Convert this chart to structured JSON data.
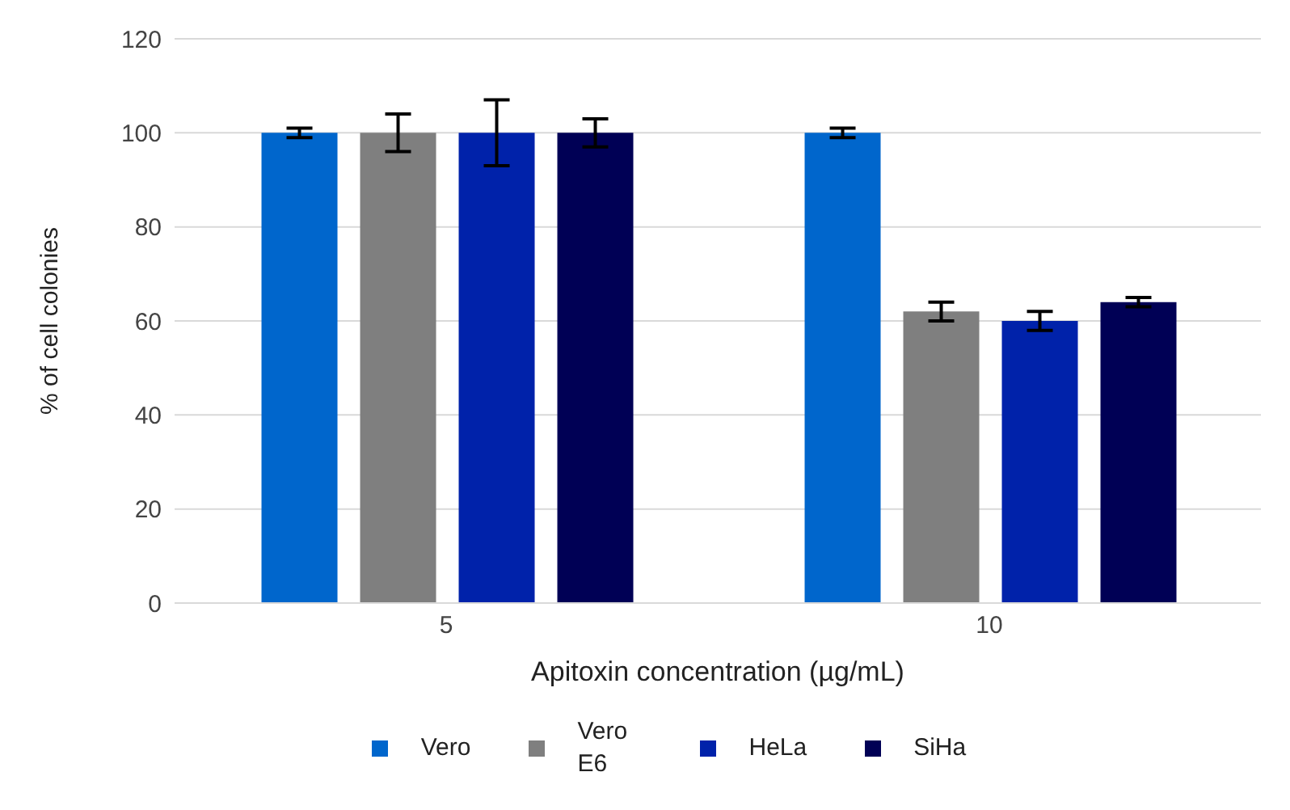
{
  "chart_data": {
    "type": "bar",
    "xlabel": "Apitoxin concentration (µg/mL)",
    "ylabel": "% of cell colonies",
    "categories": [
      "5",
      "10"
    ],
    "series": [
      {
        "name": "Vero",
        "color": "#0066cc",
        "values": [
          100,
          100
        ],
        "errors": [
          1,
          1
        ]
      },
      {
        "name": "Vero E6",
        "color": "#7f7f7f",
        "values": [
          100,
          62
        ],
        "errors": [
          4,
          2
        ]
      },
      {
        "name": "HeLa",
        "color": "#0022aa",
        "values": [
          100,
          60
        ],
        "errors": [
          7,
          2
        ]
      },
      {
        "name": "SiHa",
        "color": "#000055",
        "values": [
          100,
          64
        ],
        "errors": [
          3,
          1
        ]
      }
    ],
    "ylim": [
      0,
      120
    ],
    "yticks": [
      0,
      20,
      40,
      60,
      80,
      100,
      120
    ],
    "grid": "y",
    "legend": "bottom"
  }
}
